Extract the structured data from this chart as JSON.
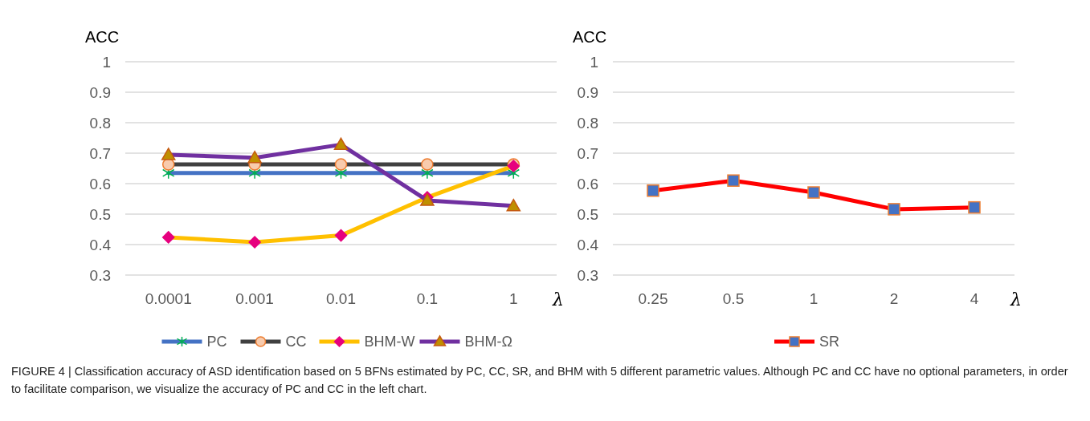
{
  "chart_data": [
    {
      "type": "line",
      "ylabel": "ACC",
      "xlabel": "λ",
      "categories": [
        "0.0001",
        "0.001",
        "0.01",
        "0.1",
        "1"
      ],
      "ylim": [
        0.3,
        1
      ],
      "yticks": [
        0.3,
        0.4,
        0.5,
        0.6,
        0.7,
        0.8,
        0.9,
        1
      ],
      "grid": "y",
      "legend": "bottom",
      "line_style": "solid",
      "series": [
        {
          "name": "PC",
          "color": "#4472c4",
          "marker": "cross",
          "values": [
            0.635,
            0.635,
            0.635,
            0.635,
            0.635
          ]
        },
        {
          "name": "CC",
          "color": "#404040",
          "marker": "circle",
          "values": [
            0.663,
            0.663,
            0.663,
            0.663,
            0.663
          ]
        },
        {
          "name": "BHM-W",
          "color": "#ffc000",
          "marker": "diamond",
          "values": [
            0.424,
            0.408,
            0.43,
            0.555,
            0.658
          ]
        },
        {
          "name": "BHM-Ω",
          "color": "#7030a0",
          "marker": "triangle",
          "values": [
            0.695,
            0.685,
            0.728,
            0.545,
            0.527
          ]
        }
      ],
      "annotations": [
        "FIGURE 4 | Classification accuracy of ASD identification based on 5 BFNs estimated by PC, CC, SR, and BHM with 5 different parametric values. Although PC and CC have no optional parameters, in order to facilitate comparison, we visualize the accuracy of PC and CC in the left chart."
      ]
    },
    {
      "type": "line",
      "ylabel": "ACC",
      "xlabel": "λ",
      "categories": [
        "0.25",
        "0.5",
        "1",
        "2",
        "4"
      ],
      "ylim": [
        0.3,
        1
      ],
      "yticks": [
        0.3,
        0.4,
        0.5,
        0.6,
        0.7,
        0.8,
        0.9,
        1
      ],
      "grid": "y",
      "legend": "bottom",
      "line_style": "solid",
      "series": [
        {
          "name": "SR",
          "color": "#ff0000",
          "marker": "square",
          "values": [
            0.577,
            0.61,
            0.571,
            0.516,
            0.522
          ]
        }
      ]
    }
  ]
}
